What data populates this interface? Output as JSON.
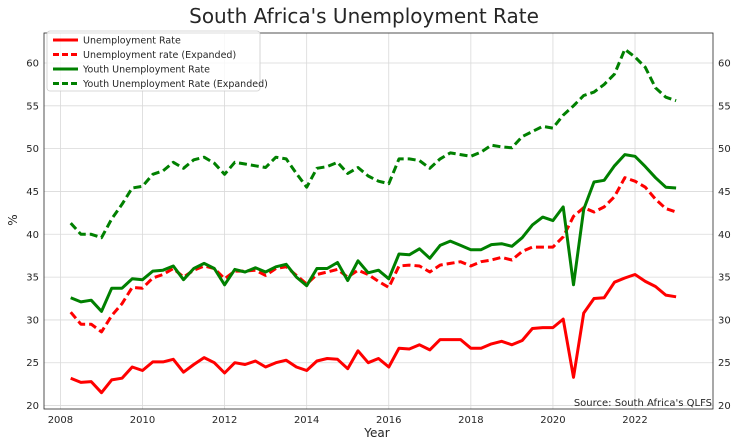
{
  "chart_data": {
    "type": "line",
    "title": "South Africa's Unemployment Rate",
    "xlabel": "Year",
    "ylabel": "%",
    "xlim": [
      2007.6,
      2023.9
    ],
    "ylim": [
      19.6,
      63.5
    ],
    "xticks": [
      2008,
      2010,
      2012,
      2014,
      2016,
      2018,
      2020,
      2022
    ],
    "yticks": [
      20,
      25,
      30,
      35,
      40,
      45,
      50,
      55,
      60
    ],
    "secondary_y_axis": true,
    "grid": true,
    "legend": "top-left",
    "annotation": "Source: South Africa's QLFS",
    "x": [
      2008.25,
      2008.5,
      2008.75,
      2009.0,
      2009.25,
      2009.5,
      2009.75,
      2010.0,
      2010.25,
      2010.5,
      2010.75,
      2011.0,
      2011.25,
      2011.5,
      2011.75,
      2012.0,
      2012.25,
      2012.5,
      2012.75,
      2013.0,
      2013.25,
      2013.5,
      2013.75,
      2014.0,
      2014.25,
      2014.5,
      2014.75,
      2015.0,
      2015.25,
      2015.5,
      2015.75,
      2016.0,
      2016.25,
      2016.5,
      2016.75,
      2017.0,
      2017.25,
      2017.5,
      2017.75,
      2018.0,
      2018.25,
      2018.5,
      2018.75,
      2019.0,
      2019.25,
      2019.5,
      2019.75,
      2020.0,
      2020.25,
      2020.5,
      2020.75,
      2021.0,
      2021.25,
      2021.5,
      2021.75,
      2022.0,
      2022.25,
      2022.5,
      2022.75,
      2023.0
    ],
    "series": [
      {
        "name": "Unemployment Rate",
        "color": "#ff0000",
        "dash": "solid",
        "values": [
          23.2,
          22.7,
          22.8,
          21.5,
          23.0,
          23.2,
          24.5,
          24.1,
          25.1,
          25.1,
          25.4,
          23.9,
          24.8,
          25.6,
          25.0,
          23.8,
          25.0,
          24.8,
          25.2,
          24.5,
          25.0,
          25.3,
          24.5,
          24.1,
          25.2,
          25.5,
          25.4,
          24.3,
          26.4,
          25.0,
          25.5,
          24.5,
          26.7,
          26.6,
          27.1,
          26.5,
          27.7,
          27.7,
          27.7,
          26.7,
          26.7,
          27.2,
          27.5,
          27.1,
          27.6,
          29.0,
          29.1,
          29.1,
          30.1,
          23.3,
          30.8,
          32.5,
          32.6,
          34.4,
          34.9,
          35.3,
          34.5,
          33.9,
          32.9,
          32.7
        ]
      },
      {
        "name": "Unemployment rate (Expanded)",
        "color": "#ff0000",
        "dash": "dashed",
        "values": [
          30.9,
          29.5,
          29.5,
          28.6,
          30.5,
          31.9,
          33.8,
          33.7,
          34.9,
          35.3,
          36.0,
          35.0,
          35.8,
          36.3,
          36.0,
          34.8,
          35.7,
          35.7,
          35.8,
          35.2,
          36.0,
          36.2,
          35.2,
          34.2,
          35.3,
          35.6,
          35.9,
          35.0,
          35.8,
          35.3,
          34.5,
          33.8,
          36.3,
          36.4,
          36.3,
          35.6,
          36.4,
          36.6,
          36.8,
          36.3,
          36.8,
          37.0,
          37.3,
          37.0,
          38.0,
          38.5,
          38.5,
          38.5,
          39.7,
          42.1,
          43.1,
          42.6,
          43.2,
          44.4,
          46.6,
          46.2,
          45.5,
          44.1,
          43.0,
          42.6
        ]
      },
      {
        "name": "Youth Unemployment Rate",
        "color": "#008000",
        "dash": "solid",
        "values": [
          32.6,
          32.1,
          32.3,
          31.0,
          33.7,
          33.7,
          34.8,
          34.7,
          35.7,
          35.8,
          36.3,
          34.7,
          36.0,
          36.6,
          36.0,
          34.1,
          35.9,
          35.6,
          36.1,
          35.6,
          36.2,
          36.5,
          35.0,
          34.0,
          36.0,
          36.0,
          36.7,
          34.6,
          36.9,
          35.5,
          35.8,
          34.8,
          37.7,
          37.6,
          38.3,
          37.2,
          38.7,
          39.2,
          38.7,
          38.2,
          38.2,
          38.8,
          38.9,
          38.6,
          39.6,
          41.1,
          42.0,
          41.6,
          43.2,
          34.1,
          42.9,
          46.1,
          46.3,
          48.0,
          49.3,
          49.1,
          47.9,
          46.6,
          45.5,
          45.4
        ]
      },
      {
        "name": "Youth Unemployment Rate (Expanded)",
        "color": "#008000",
        "dash": "dashed",
        "values": [
          41.3,
          40.0,
          40.0,
          39.6,
          41.8,
          43.5,
          45.4,
          45.6,
          47.0,
          47.4,
          48.4,
          47.7,
          48.7,
          49.0,
          48.3,
          47.0,
          48.4,
          48.2,
          48.0,
          47.8,
          49.0,
          48.8,
          47.1,
          45.5,
          47.7,
          47.9,
          48.4,
          47.1,
          47.8,
          46.8,
          46.2,
          45.9,
          48.8,
          48.8,
          48.6,
          47.7,
          48.8,
          49.5,
          49.3,
          49.1,
          49.6,
          50.4,
          50.2,
          50.1,
          51.4,
          52.0,
          52.6,
          52.4,
          53.9,
          55.0,
          56.2,
          56.6,
          57.5,
          58.7,
          61.6,
          60.7,
          59.5,
          57.1,
          56.0,
          55.6
        ]
      }
    ]
  }
}
